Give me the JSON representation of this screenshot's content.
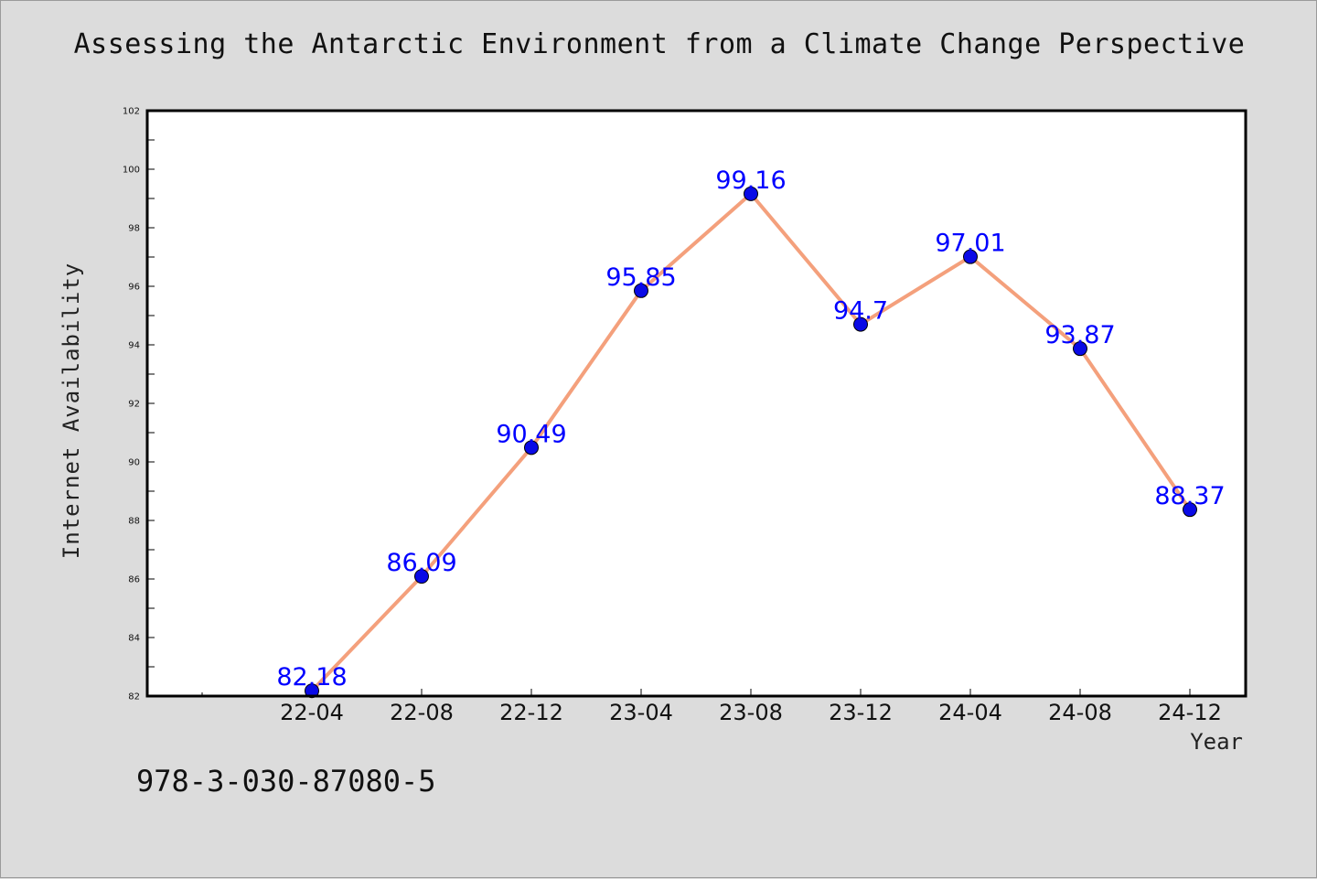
{
  "chart_data": {
    "type": "line",
    "title": "Assessing the Antarctic Environment from a Climate Change Perspective",
    "xlabel": "Year",
    "ylabel": "Internet Availability",
    "categories": [
      "22-04",
      "22-08",
      "22-12",
      "23-04",
      "23-08",
      "23-12",
      "24-04",
      "24-08",
      "24-12"
    ],
    "series": [
      {
        "values": [
          82.18,
          86.09,
          90.49,
          95.85,
          99.16,
          94.7,
          97.01,
          93.87,
          88.37
        ],
        "data_labels": [
          "82.18",
          "86.09",
          "90.49",
          "95.85",
          "99.16",
          "94.7",
          "97.01",
          "93.87",
          "88.37"
        ],
        "line_color": "#f4a07c",
        "marker_color": "#0a0ae6",
        "label_color": "#0000ff"
      }
    ],
    "ylim": [
      82,
      102
    ],
    "yticks": [
      82,
      84,
      86,
      88,
      90,
      92,
      94,
      96,
      98,
      100,
      102
    ],
    "grid": false,
    "legend": "none"
  },
  "footer": {
    "code": "978-3-030-87080-5"
  },
  "colors": {
    "background": "#dcdcdc",
    "plot_background": "#ffffff",
    "axes": "#000000"
  }
}
